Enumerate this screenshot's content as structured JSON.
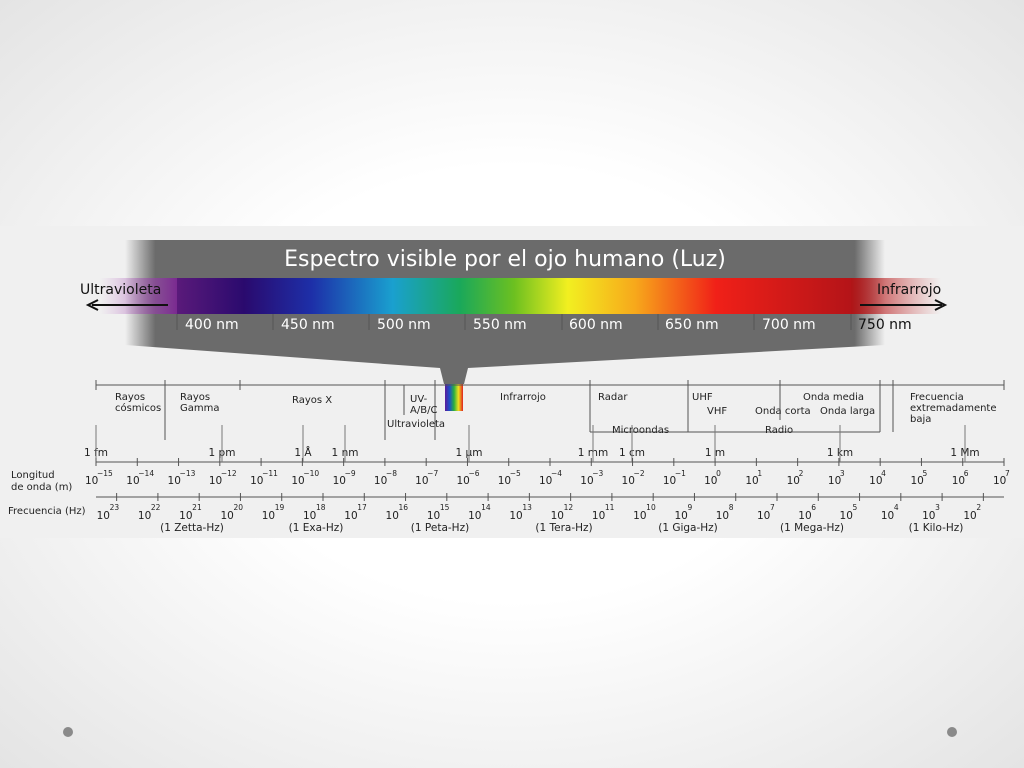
{
  "title": "Espectro visible por el ojo humano (Luz)",
  "visible_band": {
    "left_label": "Ultravioleta",
    "right_label": "Infrarrojo",
    "wavelength_labels": [
      "400 nm",
      "450 nm",
      "500 nm",
      "550 nm",
      "600 nm",
      "650 nm",
      "700 nm",
      "750 nm"
    ]
  },
  "regions": [
    [
      "Rayos",
      "cósmicos"
    ],
    [
      "Rayos",
      "Gamma"
    ],
    [
      "Rayos X"
    ],
    [
      "UV-",
      "A/B/C"
    ],
    [
      "Ultravioleta"
    ],
    [
      "Infrarrojo"
    ],
    [
      "Radar"
    ],
    [
      "Microondas"
    ],
    [
      "UHF"
    ],
    [
      "VHF"
    ],
    [
      "Onda media"
    ],
    [
      "Onda corta"
    ],
    [
      "Onda larga"
    ],
    [
      "Radio"
    ],
    [
      "Frecuencia",
      "extremadamente",
      "baja"
    ]
  ],
  "wavelength_marks": [
    "1 fm",
    "1 pm",
    "1 Å",
    "1 nm",
    "1 μm",
    "1 mm",
    "1 cm",
    "1 m",
    "1 km",
    "1 Mm"
  ],
  "row_labels": {
    "wavelength": [
      "Longitud",
      "de onda (m)"
    ],
    "frequency": "Frecuencia (Hz)"
  },
  "base": "10",
  "wavelength_exponents": [
    "−15",
    "−14",
    "−13",
    "−12",
    "−11",
    "−10",
    "−9",
    "−8",
    "−7",
    "−6",
    "−5",
    "−4",
    "−3",
    "−2",
    "−1",
    "0",
    "1",
    "2",
    "3",
    "4",
    "5",
    "6",
    "7"
  ],
  "frequency_exponents": [
    "23",
    "22",
    "21",
    "20",
    "19",
    "18",
    "17",
    "16",
    "15",
    "14",
    "13",
    "12",
    "11",
    "10",
    "9",
    "8",
    "7",
    "6",
    "5",
    "4",
    "3",
    "2"
  ],
  "frequency_units": [
    "(1 Zetta-Hz)",
    "(1 Exa-Hz)",
    "(1 Peta-Hz)",
    "(1 Tera-Hz)",
    "(1 Giga-Hz)",
    "(1 Mega-Hz)",
    "(1 Kilo-Hz)"
  ]
}
